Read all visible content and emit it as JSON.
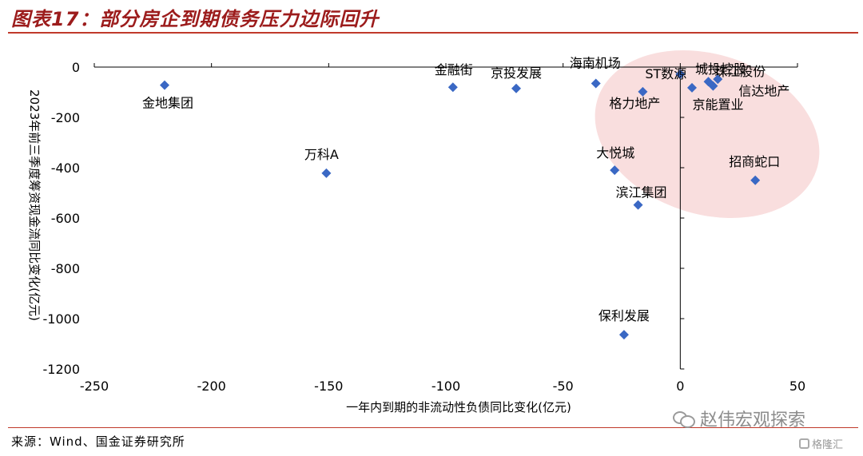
{
  "title": "图表17：部分房企到期债务压力边际回升",
  "source": "来源：Wind、国金证券研究所",
  "watermark": "赵伟宏观探索",
  "watermark_icon": "wechat-icon",
  "corner_logo": "格隆汇",
  "colors": {
    "marker": "#3a68c4",
    "highlight": "#f7d3d3",
    "title": "#9c1c1c",
    "rule": "#c0392b"
  },
  "chart_data": {
    "type": "scatter",
    "xlabel": "一年内到期的非流动性负债同比变化(亿元)",
    "ylabel": "2023年前三季度筹资现金流同比变化(亿元)",
    "xlim": [
      -250,
      50
    ],
    "ylim": [
      -1200,
      0
    ],
    "xticks": [
      -250,
      -200,
      -150,
      -100,
      -50,
      0,
      50
    ],
    "yticks": [
      0,
      -200,
      -400,
      -600,
      -800,
      -1000,
      -1200
    ],
    "grid": false,
    "legend": "none",
    "points": [
      {
        "label": "金地集团",
        "x": -220,
        "y": -72
      },
      {
        "label": "金融街",
        "x": -97,
        "y": -80
      },
      {
        "label": "京投发展",
        "x": -70,
        "y": -85
      },
      {
        "label": "海南机场",
        "x": -36,
        "y": -65
      },
      {
        "label": "格力地产",
        "x": -16,
        "y": -98
      },
      {
        "label": "ST数源",
        "x": 0,
        "y": -28
      },
      {
        "label": "城投控股",
        "x": 5,
        "y": -82
      },
      {
        "label": "京能置业",
        "x": 12,
        "y": -58
      },
      {
        "label": "信达地产",
        "x": 14,
        "y": -75
      },
      {
        "label": "珠江股份",
        "x": 16,
        "y": -48
      },
      {
        "label": "万科A",
        "x": -151,
        "y": -422
      },
      {
        "label": "大悦城",
        "x": -28,
        "y": -410
      },
      {
        "label": "招商蛇口",
        "x": 32,
        "y": -450
      },
      {
        "label": "滨江集团",
        "x": -18,
        "y": -548
      },
      {
        "label": "保利发展",
        "x": -24,
        "y": -1064
      }
    ]
  }
}
